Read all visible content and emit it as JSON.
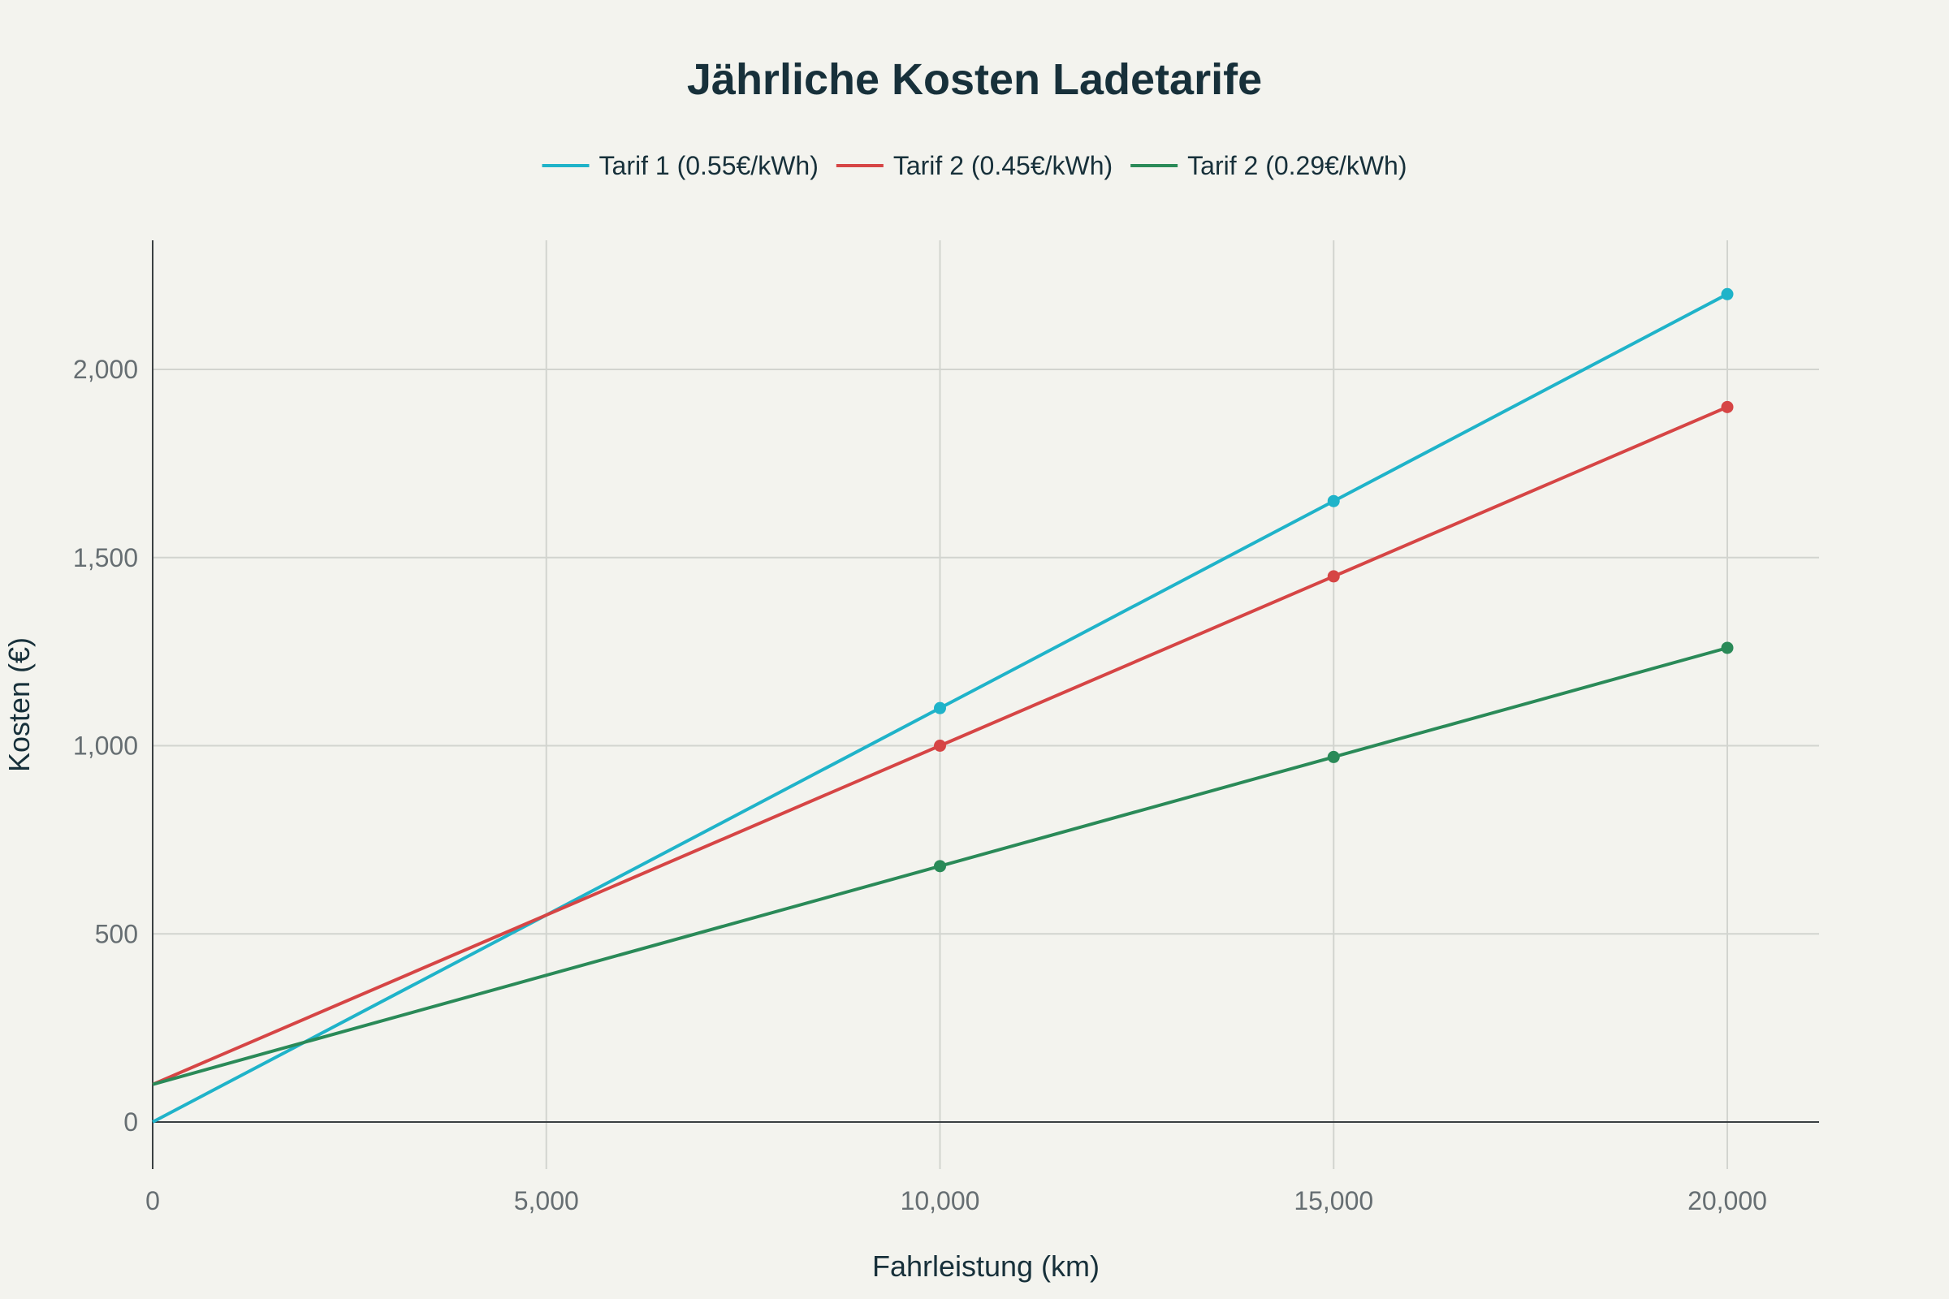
{
  "chart_data": {
    "type": "line",
    "title": "Jährliche Kosten Ladetarife",
    "xlabel": "Fahrleistung (km)",
    "ylabel": "Kosten (€)",
    "x": [
      0,
      10000,
      15000,
      20000
    ],
    "xlim": [
      0,
      21200
    ],
    "ylim": [
      -120,
      2350
    ],
    "xticks": [
      0,
      5000,
      10000,
      15000,
      20000
    ],
    "xtick_labels": [
      "0",
      "5,000",
      "10,000",
      "15,000",
      "20,000"
    ],
    "yticks": [
      0,
      500,
      1000,
      1500,
      2000
    ],
    "ytick_labels": [
      "0",
      "500",
      "1,000",
      "1,500",
      "2,000"
    ],
    "grid": true,
    "legend_position": "top-center",
    "series": [
      {
        "name": "Tarif 1 (0.55€/kWh)",
        "color": "#1fb3c9",
        "values": [
          0,
          1100,
          1650,
          2200
        ],
        "markers": [
          false,
          true,
          true,
          true
        ]
      },
      {
        "name": "Tarif 2 (0.45€/kWh)",
        "color": "#d64545",
        "values": [
          100,
          1000,
          1450,
          1900
        ],
        "markers": [
          false,
          true,
          true,
          true
        ]
      },
      {
        "name": "Tarif 2 (0.29€/kWh)",
        "color": "#2a8a58",
        "values": [
          100,
          680,
          970,
          1260
        ],
        "markers": [
          false,
          true,
          true,
          true
        ]
      }
    ]
  }
}
